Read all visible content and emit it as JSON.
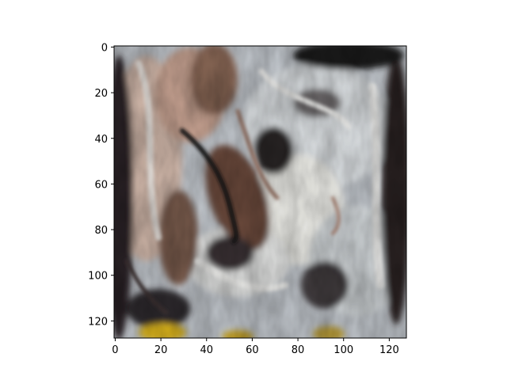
{
  "chart_data": {
    "type": "heatmap",
    "title": "",
    "xlabel": "",
    "ylabel": "",
    "image_size": [
      128,
      128
    ],
    "xlim": [
      0,
      128
    ],
    "ylim": [
      128,
      0
    ],
    "y_inverted": true,
    "x_ticks": [
      0,
      20,
      40,
      60,
      80,
      100,
      120
    ],
    "y_ticks": [
      0,
      20,
      40,
      60,
      80,
      100,
      120
    ],
    "grid": false,
    "legend": "none",
    "content": "abstract stylized image with swirling brush-like textures",
    "palette": {
      "background_light": "#c9d0d6",
      "highlight": "#f7f7f4",
      "skin_tone": "#d8b8a8",
      "brown": "#6b4a3a",
      "dark": "#1e1a1c",
      "yellow_accent": "#d9b21e"
    }
  }
}
